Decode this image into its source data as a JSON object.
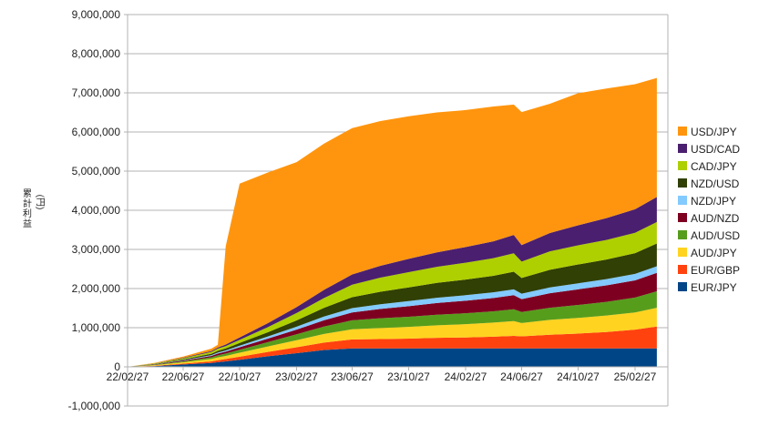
{
  "chart_data": {
    "type": "area",
    "stacked": true,
    "ylabel": "累計利益\n(円)",
    "ylim": [
      -1000000,
      9000000
    ],
    "yticks": [
      -1000000,
      0,
      1000000,
      2000000,
      3000000,
      4000000,
      5000000,
      6000000,
      7000000,
      8000000,
      9000000
    ],
    "ytick_labels": [
      "-1,000,000",
      "0",
      "1,000,000",
      "2,000,000",
      "3,000,000",
      "4,000,000",
      "5,000,000",
      "6,000,000",
      "7,000,000",
      "8,000,000",
      "9,000,000"
    ],
    "xticks": [
      "22/02/27",
      "22/06/27",
      "22/10/27",
      "23/02/27",
      "23/06/27",
      "23/10/27",
      "24/02/27",
      "24/06/27",
      "24/10/27",
      "25/02/27"
    ],
    "x": [
      "22/02/27",
      "22/04/27",
      "22/06/27",
      "22/08/27",
      "22/09/10",
      "22/09/27",
      "22/10/27",
      "22/12/27",
      "23/02/27",
      "23/04/27",
      "23/06/27",
      "23/08/27",
      "23/10/27",
      "23/12/27",
      "24/02/27",
      "24/04/27",
      "24/06/10",
      "24/06/27",
      "24/08/27",
      "24/10/27",
      "24/12/27",
      "25/02/27",
      "25/04/15"
    ],
    "grid": true,
    "legend": "right",
    "series": [
      {
        "name": "EUR/JPY",
        "color": "#004586",
        "values": [
          0,
          20000,
          60000,
          100000,
          120000,
          140000,
          180000,
          270000,
          350000,
          430000,
          470000,
          470000,
          470000,
          470000,
          470000,
          470000,
          470000,
          470000,
          470000,
          470000,
          470000,
          470000,
          470000
        ]
      },
      {
        "name": "EUR/GBP",
        "color": "#ff420e",
        "values": [
          0,
          10000,
          20000,
          40000,
          50000,
          60000,
          80000,
          110000,
          150000,
          190000,
          230000,
          240000,
          250000,
          270000,
          280000,
          300000,
          320000,
          310000,
          350000,
          380000,
          420000,
          480000,
          560000
        ]
      },
      {
        "name": "AUD/JPY",
        "color": "#ffd320",
        "values": [
          0,
          15000,
          35000,
          60000,
          70000,
          80000,
          100000,
          140000,
          180000,
          220000,
          260000,
          280000,
          300000,
          320000,
          340000,
          360000,
          380000,
          340000,
          380000,
          400000,
          420000,
          440000,
          480000
        ]
      },
      {
        "name": "AUD/USD",
        "color": "#579d1c",
        "values": [
          0,
          10000,
          25000,
          45000,
          55000,
          60000,
          75000,
          110000,
          150000,
          190000,
          230000,
          250000,
          260000,
          270000,
          280000,
          290000,
          300000,
          280000,
          310000,
          330000,
          350000,
          380000,
          420000
        ]
      },
      {
        "name": "AUD/NZD",
        "color": "#7e0021",
        "values": [
          0,
          8000,
          20000,
          35000,
          45000,
          50000,
          65000,
          90000,
          120000,
          160000,
          200000,
          240000,
          270000,
          300000,
          320000,
          340000,
          360000,
          330000,
          370000,
          400000,
          420000,
          440000,
          470000
        ]
      },
      {
        "name": "NZD/JPY",
        "color": "#83caff",
        "values": [
          0,
          5000,
          12000,
          20000,
          25000,
          30000,
          40000,
          55000,
          75000,
          95000,
          110000,
          120000,
          130000,
          135000,
          140000,
          145000,
          150000,
          140000,
          150000,
          155000,
          160000,
          165000,
          170000
        ]
      },
      {
        "name": "NZD/USD",
        "color": "#314004",
        "values": [
          0,
          8000,
          20000,
          35000,
          45000,
          50000,
          70000,
          110000,
          160000,
          220000,
          280000,
          320000,
          350000,
          380000,
          400000,
          420000,
          450000,
          400000,
          450000,
          480000,
          500000,
          530000,
          580000
        ]
      },
      {
        "name": "CAD/JPY",
        "color": "#aecf00",
        "values": [
          0,
          10000,
          25000,
          45000,
          55000,
          60000,
          80000,
          130000,
          190000,
          250000,
          320000,
          360000,
          390000,
          410000,
          430000,
          450000,
          470000,
          420000,
          470000,
          490000,
          500000,
          520000,
          550000
        ]
      },
      {
        "name": "USD/CAD",
        "color": "#4b1f6f",
        "values": [
          0,
          5000,
          15000,
          25000,
          30000,
          40000,
          60000,
          100000,
          150000,
          210000,
          260000,
          300000,
          340000,
          370000,
          400000,
          430000,
          470000,
          420000,
          470000,
          510000,
          560000,
          600000,
          640000
        ]
      },
      {
        "name": "USD/JPY",
        "color": "#ff950e",
        "values": [
          0,
          10000,
          30000,
          60000,
          70000,
          2510000,
          3930000,
          3850000,
          3705000,
          3735000,
          3740000,
          3700000,
          3640000,
          3575000,
          3500000,
          3445000,
          3330000,
          3400000,
          3300000,
          3375000,
          3310000,
          3195000,
          3040000
        ]
      }
    ]
  }
}
